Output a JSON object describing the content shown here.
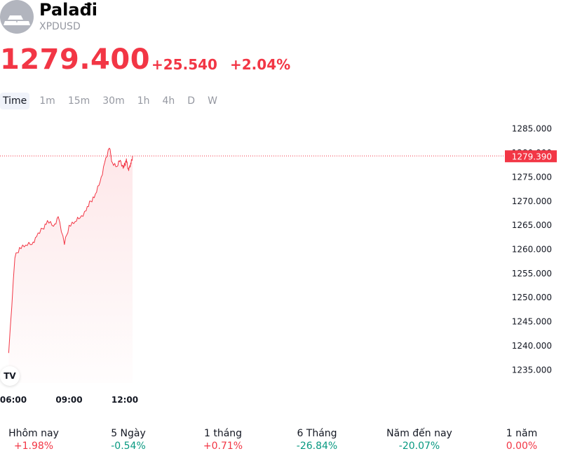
{
  "header": {
    "name": "Palađi",
    "symbol": "XPDUSD",
    "price": "1279.400",
    "change": "+25.540",
    "change_pct": "+2.04%",
    "logo_icon": "palladium-bars-icon"
  },
  "tabs": [
    {
      "label": "Time",
      "active": true
    },
    {
      "label": "1m"
    },
    {
      "label": "15m"
    },
    {
      "label": "30m"
    },
    {
      "label": "1h"
    },
    {
      "label": "4h"
    },
    {
      "label": "D"
    },
    {
      "label": "W"
    }
  ],
  "colors": {
    "up": "#f23645",
    "down": "#089981",
    "line": "#f23645",
    "grid_text": "#131722"
  },
  "chart_data": {
    "type": "area",
    "x_tick_labels": [
      "06:00",
      "09:00",
      "12:00"
    ],
    "y_tick_labels": [
      "1285.000",
      "1280.000",
      "1275.000",
      "1270.000",
      "1265.000",
      "1260.000",
      "1255.000",
      "1250.000",
      "1245.000",
      "1240.000",
      "1235.000"
    ],
    "ylim": [
      1233.0,
      1287.0
    ],
    "current_value": "1279.390",
    "x": [
      "05:45",
      "06:05",
      "06:20",
      "06:40",
      "07:00",
      "07:15",
      "07:35",
      "07:50",
      "08:10",
      "08:25",
      "08:45",
      "09:00",
      "09:20",
      "09:35",
      "09:55",
      "10:10",
      "10:25",
      "10:40",
      "10:55",
      "11:10",
      "11:20",
      "11:35",
      "11:45",
      "11:55",
      "12:00",
      "12:05",
      "12:10",
      "12:15",
      "12:20",
      "12:25"
    ],
    "values": [
      1238.5,
      1258.2,
      1260.4,
      1260.9,
      1261.0,
      1262.6,
      1264.3,
      1266.0,
      1264.8,
      1266.8,
      1261.0,
      1265.0,
      1265.8,
      1266.5,
      1268.0,
      1270.0,
      1271.5,
      1274.0,
      1278.0,
      1281.0,
      1278.0,
      1277.2,
      1278.5,
      1276.8,
      1277.6,
      1278.8,
      1276.7,
      1277.0,
      1277.7,
      1279.4
    ],
    "grid": false,
    "legend": "none"
  },
  "performance": [
    {
      "label": "Hhôm nay",
      "value": "+1.98%",
      "dir": "up"
    },
    {
      "label": "5 Ngày",
      "value": "-0.54%",
      "dir": "down"
    },
    {
      "label": "1 tháng",
      "value": "+0.71%",
      "dir": "up"
    },
    {
      "label": "6 Tháng",
      "value": "-26.84%",
      "dir": "down"
    },
    {
      "label": "Năm đến nay",
      "value": "-20.07%",
      "dir": "down"
    },
    {
      "label": "1 năm",
      "value": "0.00%",
      "dir": "up"
    }
  ],
  "tv_logo": "TV"
}
